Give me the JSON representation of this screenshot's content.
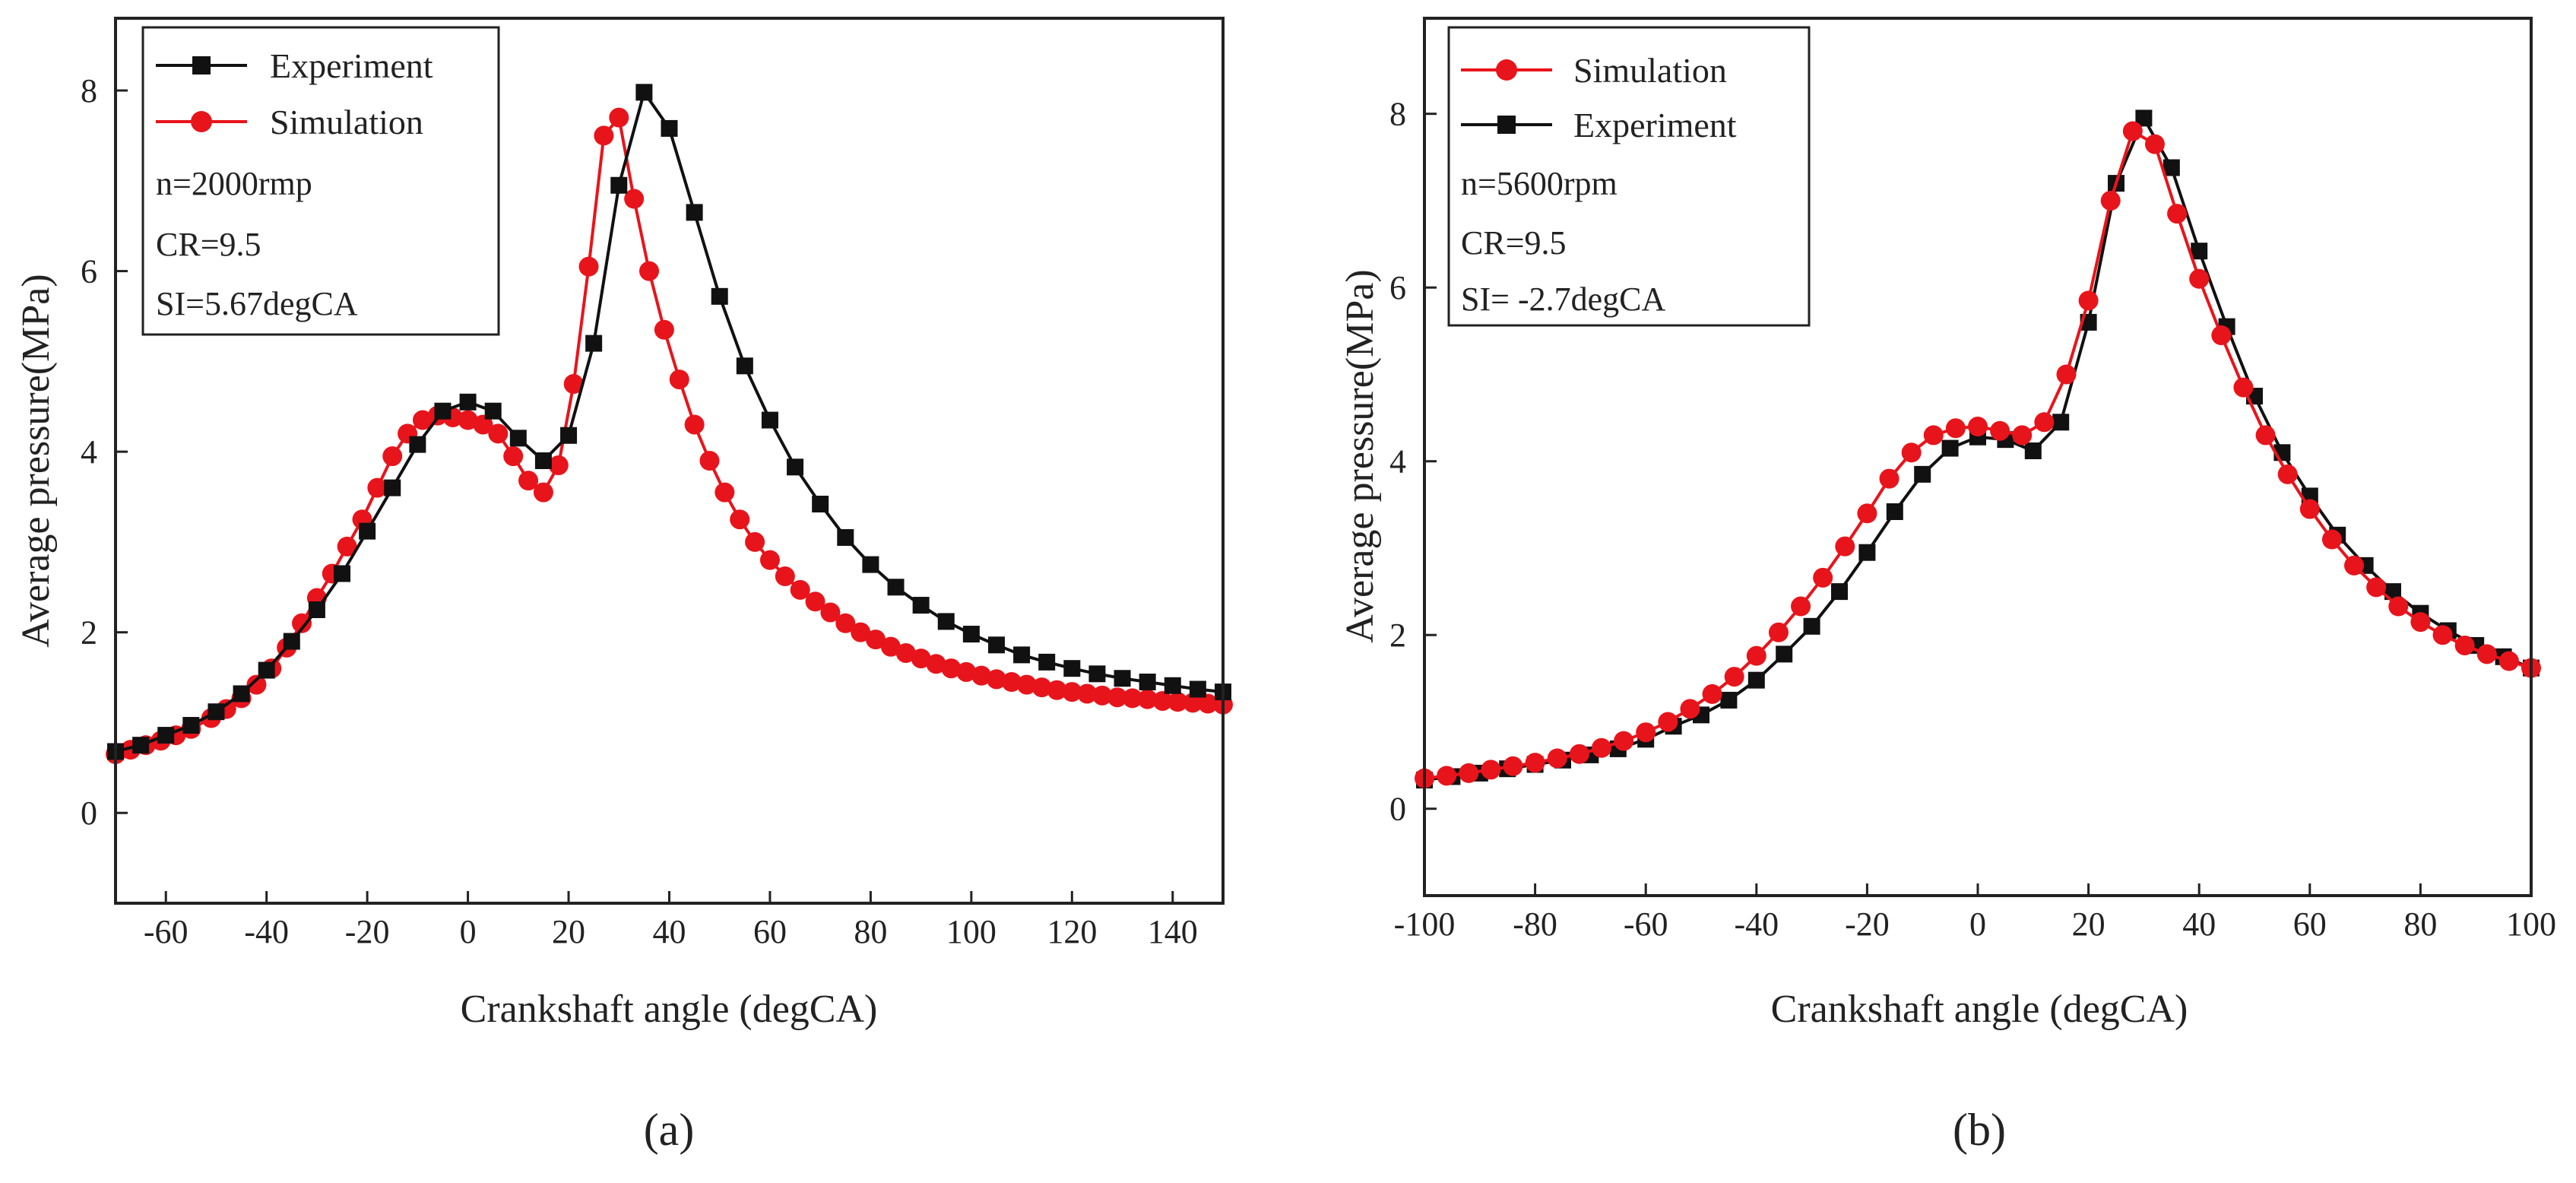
{
  "figure": {
    "panel_labels": [
      "(a)",
      "(b)"
    ]
  },
  "colors": {
    "experiment": "#111111",
    "simulation": "#e8141b",
    "axis": "#222222"
  },
  "chart_data": [
    {
      "type": "line",
      "panel": "(a)",
      "xlabel": "Crankshaft angle (degCA)",
      "ylabel": "Average pressure(MPa)",
      "xlim": [
        -70,
        150
      ],
      "ylim": [
        -1,
        8.8
      ],
      "xticks": [
        -60,
        -40,
        -20,
        0,
        20,
        40,
        60,
        80,
        100,
        120,
        140
      ],
      "yticks": [
        0,
        2,
        4,
        6,
        8
      ],
      "legend": [
        "Experiment",
        "Simulation"
      ],
      "annotations": [
        "n=2000rmp",
        "CR=9.5",
        "SI=5.67degCA"
      ],
      "series": [
        {
          "name": "Experiment",
          "marker": "square",
          "color": "#111111",
          "x": [
            -70,
            -65,
            -60,
            -55,
            -50,
            -45,
            -40,
            -35,
            -30,
            -25,
            -20,
            -15,
            -10,
            -5,
            0,
            5,
            10,
            15,
            20,
            25,
            30,
            35,
            40,
            45,
            50,
            55,
            60,
            65,
            70,
            75,
            80,
            85,
            90,
            95,
            100,
            105,
            110,
            115,
            120,
            125,
            130,
            135,
            140,
            145,
            150
          ],
          "y": [
            0.68,
            0.75,
            0.86,
            0.97,
            1.12,
            1.32,
            1.58,
            1.9,
            2.25,
            2.65,
            3.12,
            3.6,
            4.08,
            4.45,
            4.55,
            4.45,
            4.15,
            3.9,
            4.18,
            5.2,
            6.95,
            7.98,
            7.58,
            6.65,
            5.72,
            4.95,
            4.35,
            3.83,
            3.42,
            3.05,
            2.75,
            2.5,
            2.3,
            2.12,
            1.98,
            1.86,
            1.75,
            1.67,
            1.6,
            1.54,
            1.49,
            1.45,
            1.41,
            1.37,
            1.34
          ]
        },
        {
          "name": "Simulation",
          "marker": "circle",
          "color": "#e8141b",
          "x": [
            -70,
            -67,
            -64,
            -61,
            -58,
            -55,
            -51,
            -48,
            -45,
            -42,
            -39,
            -36,
            -33,
            -30,
            -27,
            -24,
            -21,
            -18,
            -15,
            -12,
            -9,
            -6,
            -3,
            0,
            3,
            6,
            9,
            12,
            15,
            18,
            21,
            24,
            27,
            30,
            33,
            36,
            39,
            42,
            45,
            48,
            51,
            54,
            57,
            60,
            63,
            66,
            69,
            72,
            75,
            78,
            81,
            84,
            87,
            90,
            93,
            96,
            99,
            102,
            105,
            108,
            111,
            114,
            117,
            120,
            123,
            126,
            129,
            132,
            135,
            138,
            141,
            144,
            147,
            150
          ],
          "y": [
            0.65,
            0.7,
            0.75,
            0.8,
            0.86,
            0.93,
            1.05,
            1.15,
            1.27,
            1.42,
            1.6,
            1.83,
            2.1,
            2.38,
            2.65,
            2.95,
            3.25,
            3.6,
            3.95,
            4.2,
            4.35,
            4.4,
            4.38,
            4.35,
            4.3,
            4.2,
            3.95,
            3.68,
            3.55,
            3.85,
            4.75,
            6.05,
            7.5,
            7.7,
            6.8,
            6.0,
            5.35,
            4.8,
            4.3,
            3.9,
            3.55,
            3.25,
            3.0,
            2.8,
            2.62,
            2.47,
            2.34,
            2.22,
            2.1,
            2.0,
            1.92,
            1.84,
            1.77,
            1.71,
            1.65,
            1.6,
            1.56,
            1.52,
            1.48,
            1.45,
            1.42,
            1.39,
            1.36,
            1.34,
            1.32,
            1.3,
            1.28,
            1.27,
            1.26,
            1.24,
            1.23,
            1.22,
            1.21,
            1.2
          ]
        }
      ]
    },
    {
      "type": "line",
      "panel": "(b)",
      "xlabel": "Crankshaft angle (degCA)",
      "ylabel": "Average pressure(MPa)",
      "xlim": [
        -100,
        100
      ],
      "ylim": [
        -1,
        9.1
      ],
      "xticks": [
        -100,
        -80,
        -60,
        -40,
        -20,
        0,
        20,
        40,
        60,
        80,
        100
      ],
      "yticks": [
        0,
        2,
        4,
        6,
        8
      ],
      "legend": [
        "Simulation",
        "Experiment"
      ],
      "annotations": [
        "n=5600rpm",
        "CR=9.5",
        "SI= -2.7degCA"
      ],
      "series": [
        {
          "name": "Simulation",
          "marker": "circle",
          "color": "#e8141b",
          "x": [
            -100,
            -96,
            -92,
            -88,
            -84,
            -80,
            -76,
            -72,
            -68,
            -64,
            -60,
            -56,
            -52,
            -48,
            -44,
            -40,
            -36,
            -32,
            -28,
            -24,
            -20,
            -16,
            -12,
            -8,
            -4,
            0,
            4,
            8,
            12,
            16,
            20,
            24,
            28,
            32,
            36,
            40,
            44,
            48,
            52,
            56,
            60,
            64,
            68,
            72,
            76,
            80,
            84,
            88,
            92,
            96,
            100
          ],
          "y": [
            0.35,
            0.38,
            0.41,
            0.45,
            0.49,
            0.53,
            0.58,
            0.63,
            0.7,
            0.78,
            0.88,
            1.0,
            1.15,
            1.32,
            1.52,
            1.76,
            2.03,
            2.33,
            2.66,
            3.02,
            3.4,
            3.8,
            4.1,
            4.3,
            4.38,
            4.4,
            4.35,
            4.3,
            4.45,
            5.0,
            5.85,
            7.0,
            7.8,
            7.65,
            6.85,
            6.1,
            5.45,
            4.85,
            4.3,
            3.85,
            3.45,
            3.1,
            2.8,
            2.55,
            2.33,
            2.15,
            2.0,
            1.88,
            1.78,
            1.7,
            1.62
          ]
        },
        {
          "name": "Experiment",
          "marker": "square",
          "color": "#111111",
          "x": [
            -100,
            -95,
            -90,
            -85,
            -80,
            -75,
            -70,
            -65,
            -60,
            -55,
            -50,
            -45,
            -40,
            -35,
            -30,
            -25,
            -20,
            -15,
            -10,
            -5,
            0,
            5,
            10,
            15,
            20,
            25,
            30,
            35,
            40,
            45,
            50,
            55,
            60,
            65,
            70,
            75,
            80,
            85,
            90,
            95,
            100
          ],
          "y": [
            0.33,
            0.37,
            0.41,
            0.46,
            0.51,
            0.56,
            0.62,
            0.69,
            0.8,
            0.95,
            1.08,
            1.25,
            1.48,
            1.78,
            2.1,
            2.5,
            2.95,
            3.42,
            3.85,
            4.15,
            4.28,
            4.25,
            4.12,
            4.45,
            5.6,
            7.2,
            7.95,
            7.38,
            6.42,
            5.55,
            4.75,
            4.1,
            3.6,
            3.15,
            2.8,
            2.5,
            2.25,
            2.05,
            1.88,
            1.75,
            1.62
          ]
        }
      ]
    }
  ]
}
